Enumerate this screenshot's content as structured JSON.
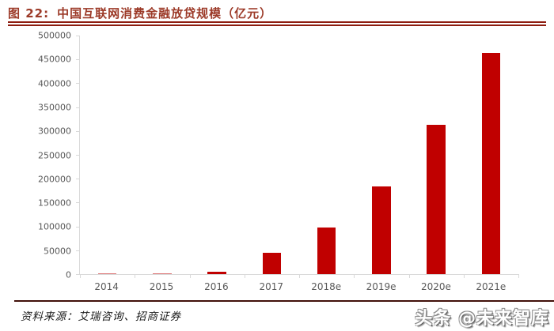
{
  "figure": {
    "label": "图 22:",
    "title": "中国互联网消费金融放贷规模（亿元）"
  },
  "chart_data": {
    "type": "bar",
    "title": "中国互联网消费金融放贷规模（亿元）",
    "categories": [
      "2014",
      "2015",
      "2016",
      "2017",
      "2018e",
      "2019e",
      "2020e",
      "2021e"
    ],
    "values": [
      200,
      1200,
      4400,
      44000,
      98000,
      184000,
      313000,
      464000
    ],
    "xlabel": "",
    "ylabel": "",
    "ylim": [
      0,
      500000
    ],
    "yticks": [
      0,
      50000,
      100000,
      150000,
      200000,
      250000,
      300000,
      350000,
      400000,
      450000,
      500000
    ],
    "grid": false,
    "legend_position": "none",
    "bar_color": "#c00000"
  },
  "footer": {
    "source": "资料来源：艾瑞咨询、招商证券",
    "watermark": "头条 @未来智库"
  },
  "colors": {
    "bar": "#c00000",
    "caption_text": "#9c3a28",
    "caption_rule": "#8e1d10",
    "axis_line": "#d9d9d9",
    "tick_label": "#595959",
    "footer_rule": "#41100a"
  }
}
